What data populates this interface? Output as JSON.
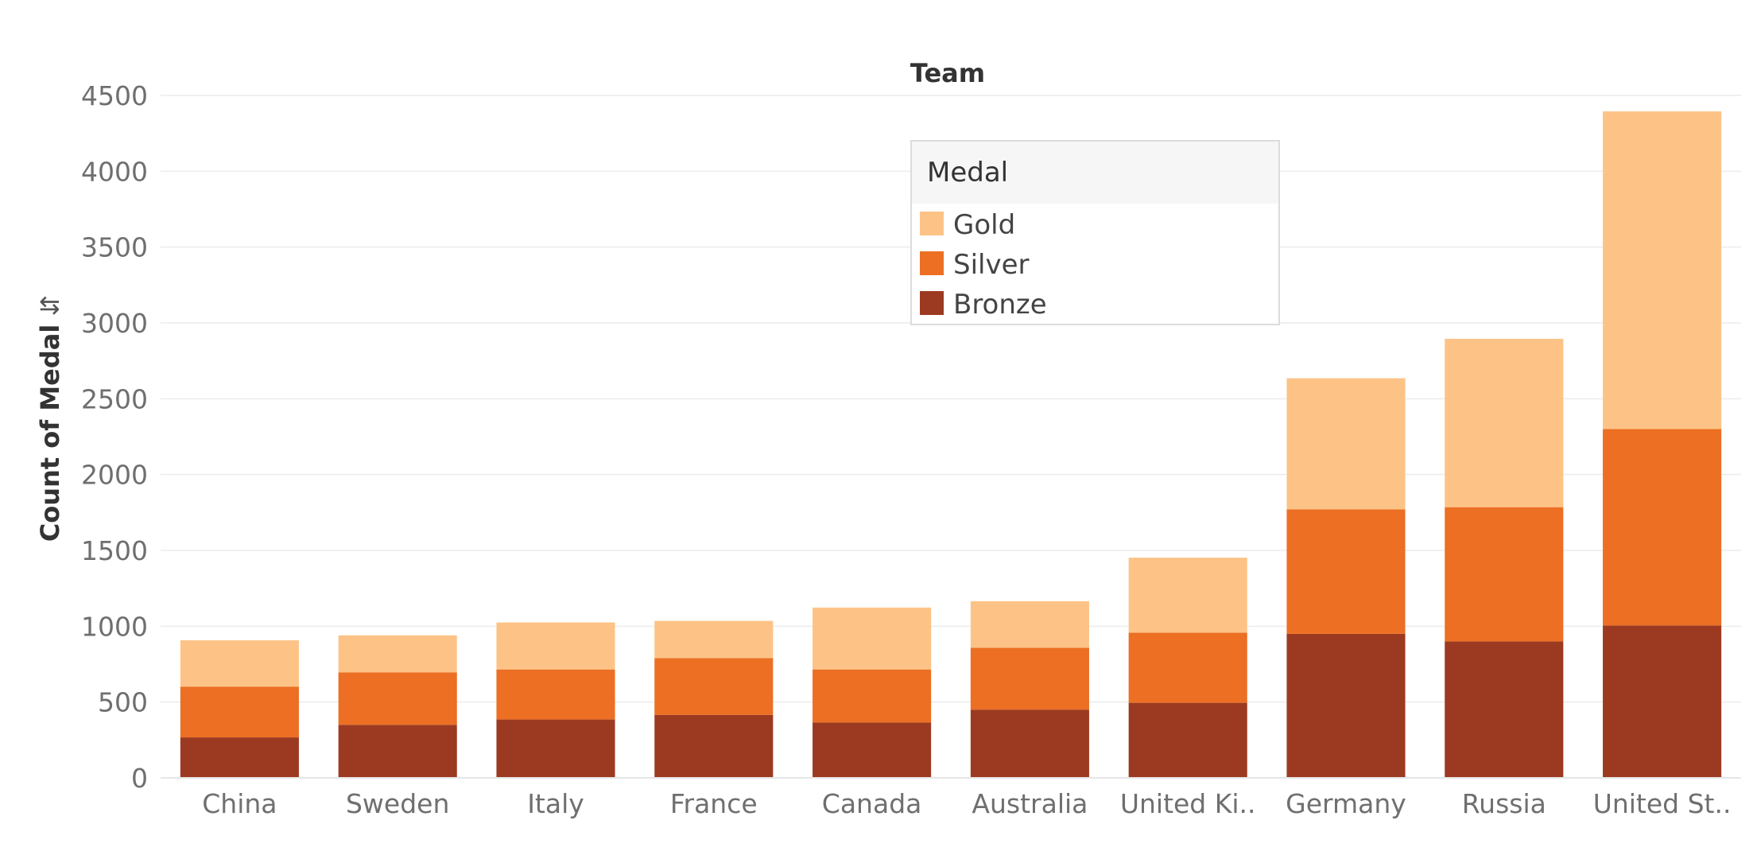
{
  "chart_data": {
    "type": "bar",
    "stacked": true,
    "title": "",
    "xlabel": "Team",
    "ylabel": "Count of Medal",
    "ylim": [
      0,
      4500
    ],
    "yticks": [
      0,
      500,
      1000,
      1500,
      2000,
      2500,
      3000,
      3500,
      4000,
      4500
    ],
    "grid": true,
    "legend_title": "Medal",
    "legend_position": "top-center",
    "categories": [
      "China",
      "Sweden",
      "Italy",
      "France",
      "Canada",
      "Australia",
      "United Ki..",
      "Germany",
      "Russia",
      "United St.."
    ],
    "series": [
      {
        "name": "Bronze",
        "color": "#9c3a21",
        "values": [
          267,
          350,
          385,
          415,
          365,
          450,
          495,
          950,
          900,
          1005
        ]
      },
      {
        "name": "Silver",
        "color": "#ec6f23",
        "values": [
          335,
          345,
          330,
          375,
          350,
          408,
          462,
          820,
          885,
          1295
        ]
      },
      {
        "name": "Gold",
        "color": "#fdc386",
        "values": [
          305,
          245,
          310,
          245,
          408,
          307,
          495,
          865,
          1110,
          2095
        ]
      }
    ]
  }
}
